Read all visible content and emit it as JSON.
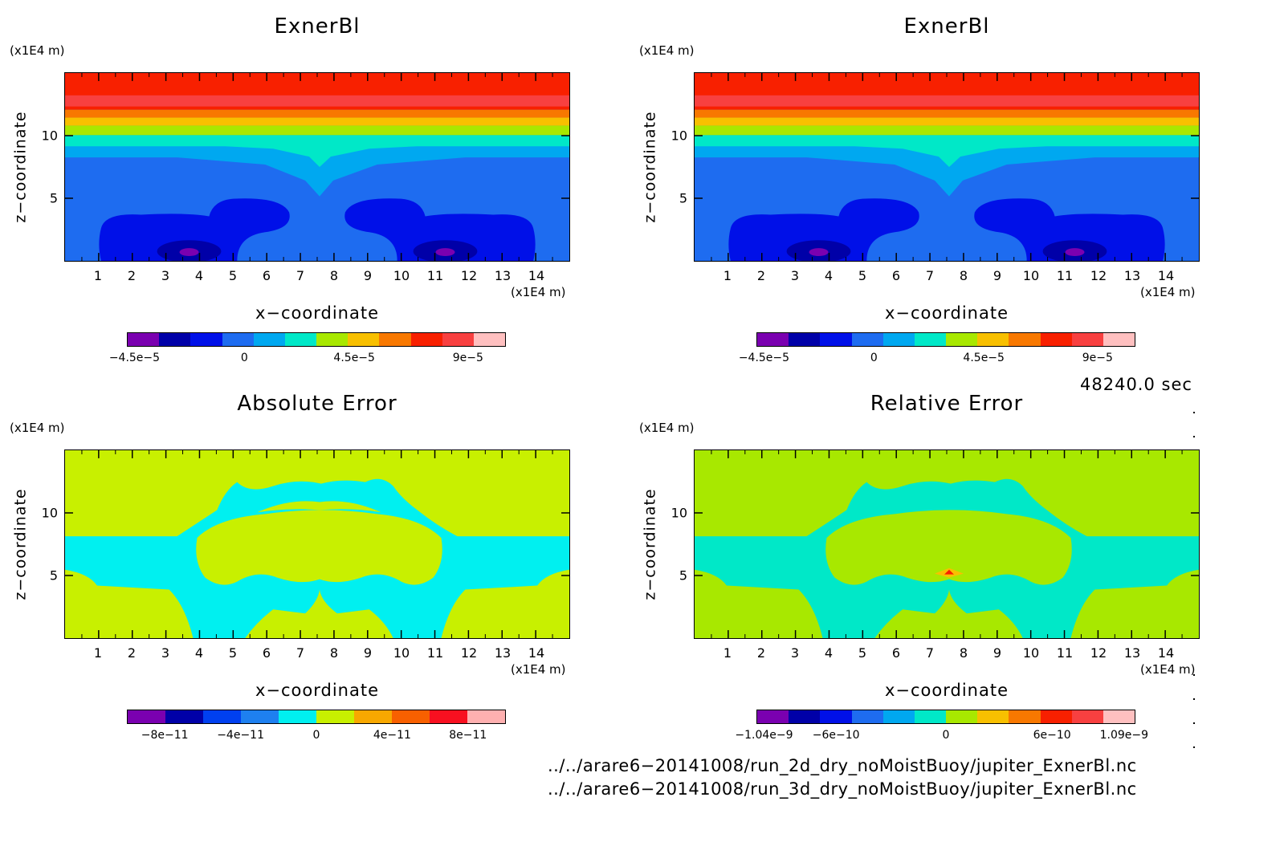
{
  "panels": [
    {
      "title": "ExnerBl",
      "y_unit": "(x1E4 m)",
      "y_label": "z−coordinate",
      "x_unit": "(x1E4 m)",
      "x_label": "x−coordinate",
      "colorbar_labels": [
        "−4.5e−5",
        "0",
        "4.5e−5",
        "9e−5"
      ]
    },
    {
      "title": "ExnerBl",
      "y_unit": "(x1E4 m)",
      "y_label": "z−coordinate",
      "x_unit": "(x1E4 m)",
      "x_label": "x−coordinate",
      "colorbar_labels": [
        "−4.5e−5",
        "0",
        "4.5e−5",
        "9e−5"
      ]
    },
    {
      "title": "Absolute Error",
      "y_unit": "(x1E4 m)",
      "y_label": "z−coordinate",
      "x_unit": "(x1E4 m)",
      "x_label": "x−coordinate",
      "colorbar_labels": [
        "−8e−11",
        "−4e−11",
        "0",
        "4e−11",
        "8e−11"
      ]
    },
    {
      "title": "Relative Error",
      "y_unit": "(x1E4 m)",
      "y_label": "z−coordinate",
      "x_unit": "(x1E4 m)",
      "x_label": "x−coordinate",
      "colorbar_labels": [
        "−1.04e−9",
        "−6e−10",
        "0",
        "6e−10",
        "1.09e−9"
      ]
    }
  ],
  "timestamp": "48240.0 sec",
  "file_paths": [
    "../../arare6−20141008/run_2d_dry_noMoistBuoy/jupiter_ExnerBl.nc",
    "../../arare6−20141008/run_3d_dry_noMoistBuoy/jupiter_ExnerBl.nc"
  ],
  "chart_data": [
    {
      "type": "heatmap",
      "title": "ExnerBl",
      "xlabel": "x−coordinate",
      "ylabel": "z−coordinate",
      "xlim": [
        0,
        15
      ],
      "ylim": [
        0,
        15
      ],
      "x_ticks": [
        1,
        2,
        3,
        4,
        5,
        6,
        7,
        8,
        9,
        10,
        11,
        12,
        13,
        14
      ],
      "y_ticks": [
        5,
        10
      ],
      "colorbar": {
        "tick_labels": [
          "−4.5e−5",
          "0",
          "4.5e−5",
          "9e−5"
        ],
        "colors": [
          "#7a00b0",
          "#0000a8",
          "#0010e8",
          "#1e6cf0",
          "#00a8f0",
          "#00e8c8",
          "#a8e800",
          "#f8c000",
          "#f87800",
          "#f82000",
          "#f84040",
          "#ffc0c0"
        ]
      }
    },
    {
      "type": "heatmap",
      "title": "ExnerBl",
      "xlabel": "x−coordinate",
      "ylabel": "z−coordinate",
      "xlim": [
        0,
        15
      ],
      "ylim": [
        0,
        15
      ],
      "x_ticks": [
        1,
        2,
        3,
        4,
        5,
        6,
        7,
        8,
        9,
        10,
        11,
        12,
        13,
        14
      ],
      "y_ticks": [
        5,
        10
      ],
      "colorbar": {
        "tick_labels": [
          "−4.5e−5",
          "0",
          "4.5e−5",
          "9e−5"
        ],
        "colors": [
          "#7a00b0",
          "#0000a8",
          "#0010e8",
          "#1e6cf0",
          "#00a8f0",
          "#00e8c8",
          "#a8e800",
          "#f8c000",
          "#f87800",
          "#f82000",
          "#f84040",
          "#ffc0c0"
        ]
      }
    },
    {
      "type": "heatmap",
      "title": "Absolute Error",
      "xlabel": "x−coordinate",
      "ylabel": "z−coordinate",
      "xlim": [
        0,
        15
      ],
      "ylim": [
        0,
        15
      ],
      "x_ticks": [
        1,
        2,
        3,
        4,
        5,
        6,
        7,
        8,
        9,
        10,
        11,
        12,
        13,
        14
      ],
      "y_ticks": [
        5,
        10
      ],
      "colorbar": {
        "tick_labels": [
          "−8e−11",
          "−4e−11",
          "0",
          "4e−11",
          "8e−11"
        ],
        "colors": [
          "#7a00b0",
          "#0000a8",
          "#0040f0",
          "#1e80f0",
          "#00f0f0",
          "#c8f000",
          "#f8a800",
          "#f86000",
          "#f81020",
          "#ffb0b0"
        ]
      }
    },
    {
      "type": "heatmap",
      "title": "Relative Error",
      "xlabel": "x−coordinate",
      "ylabel": "z−coordinate",
      "xlim": [
        0,
        15
      ],
      "ylim": [
        0,
        15
      ],
      "x_ticks": [
        1,
        2,
        3,
        4,
        5,
        6,
        7,
        8,
        9,
        10,
        11,
        12,
        13,
        14
      ],
      "y_ticks": [
        5,
        10
      ],
      "colorbar": {
        "tick_labels": [
          "−1.04e−9",
          "−6e−10",
          "0",
          "6e−10",
          "1.09e−9"
        ],
        "colors": [
          "#7a00b0",
          "#0000a8",
          "#0010e8",
          "#1e6cf0",
          "#00a8f0",
          "#00e8c8",
          "#a8e800",
          "#f8c000",
          "#f87800",
          "#f82000",
          "#f84040",
          "#ffc0c0"
        ]
      }
    }
  ]
}
